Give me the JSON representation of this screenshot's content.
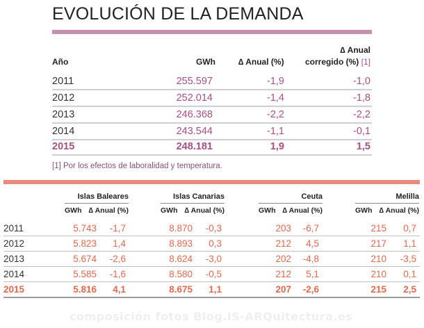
{
  "title": "EVOLUCIÓN DE LA DEMANDA",
  "table1": {
    "headers": {
      "year": "Año",
      "gwh": "GWh",
      "anual": "∆ Anual (%)",
      "corregido_line1": "∆ Anual",
      "corregido_line2": "corregido (%)",
      "corregido_ref": "[1]"
    },
    "rows": [
      {
        "year": "2011",
        "gwh": "255.597",
        "anual": "-1,9",
        "corregido": "-1,0"
      },
      {
        "year": "2012",
        "gwh": "252.014",
        "anual": "-1,4",
        "corregido": "-1,8"
      },
      {
        "year": "2013",
        "gwh": "246.368",
        "anual": "-2,2",
        "corregido": "-2,2"
      },
      {
        "year": "2014",
        "gwh": "243.544",
        "anual": "-1,1",
        "corregido": "-0,1"
      },
      {
        "year": "2015",
        "gwh": "248.181",
        "anual": "1,9",
        "corregido": "1,5"
      }
    ],
    "note": "[1] Por los efectos de laboralidad y temperatura."
  },
  "table2": {
    "groups": [
      "Islas Baleares",
      "Islas Canarias",
      "Ceuta",
      "Melilla"
    ],
    "sub_gwh": "GWh",
    "sub_anual": "∆ Anual (%)",
    "rows": [
      {
        "year": "2011",
        "values": [
          "5.743",
          "-1,7",
          "8.870",
          "-0,3",
          "203",
          "-6,7",
          "215",
          "0,7"
        ]
      },
      {
        "year": "2012",
        "values": [
          "5.823",
          "1,4",
          "8.893",
          "0,3",
          "212",
          "4,5",
          "217",
          "1,1"
        ]
      },
      {
        "year": "2013",
        "values": [
          "5.674",
          "-2,6",
          "8.624",
          "-3,0",
          "202",
          "-4,8",
          "210",
          "-3,5"
        ]
      },
      {
        "year": "2014",
        "values": [
          "5.585",
          "-1,6",
          "8.580",
          "-0,5",
          "212",
          "5,1",
          "210",
          "0,1"
        ]
      },
      {
        "year": "2015",
        "values": [
          "5.816",
          "4,1",
          "8.675",
          "1,1",
          "207",
          "-2,6",
          "215",
          "2,5"
        ]
      }
    ]
  },
  "watermark": "composición fotos   Blog.IS-ARQuitectura.es",
  "colors": {
    "accent_purple": "#a84f85",
    "bar_purple": "#c98fb1",
    "accent_coral": "#e0694f",
    "bar_coral": "#ea8c7c"
  }
}
